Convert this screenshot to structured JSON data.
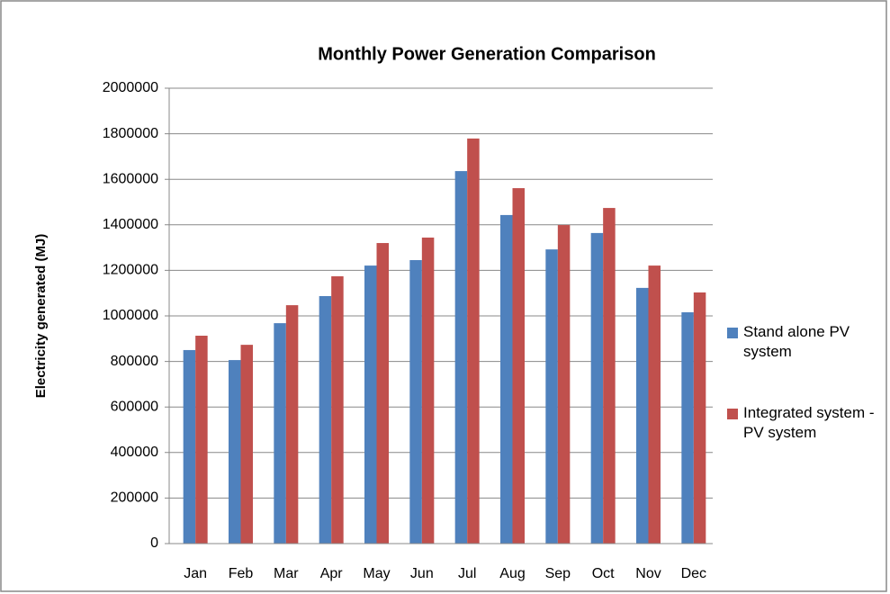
{
  "chart_data": {
    "type": "bar",
    "title": "Monthly Power Generation Comparison",
    "y_label": "Electricity generated (MJ)",
    "categories": [
      "Jan",
      "Feb",
      "Mar",
      "Apr",
      "May",
      "Jun",
      "Jul",
      "Aug",
      "Sep",
      "Oct",
      "Nov",
      "Dec"
    ],
    "series": [
      {
        "name": "Stand alone PV system",
        "color": "#4f81bd",
        "values": [
          850000,
          806000,
          968000,
          1087000,
          1221000,
          1245000,
          1636000,
          1443000,
          1292000,
          1364000,
          1123000,
          1016000
        ]
      },
      {
        "name": "Integrated system - PV system",
        "color": "#c0504d",
        "values": [
          913000,
          873000,
          1047000,
          1174000,
          1320000,
          1344000,
          1779000,
          1561000,
          1399000,
          1474000,
          1221000,
          1103000
        ]
      }
    ],
    "ylim": [
      0,
      2000000
    ],
    "yticks": [
      0,
      200000,
      400000,
      600000,
      800000,
      1000000,
      1200000,
      1400000,
      1600000,
      1800000,
      2000000
    ],
    "grid": true,
    "legend": "right"
  }
}
